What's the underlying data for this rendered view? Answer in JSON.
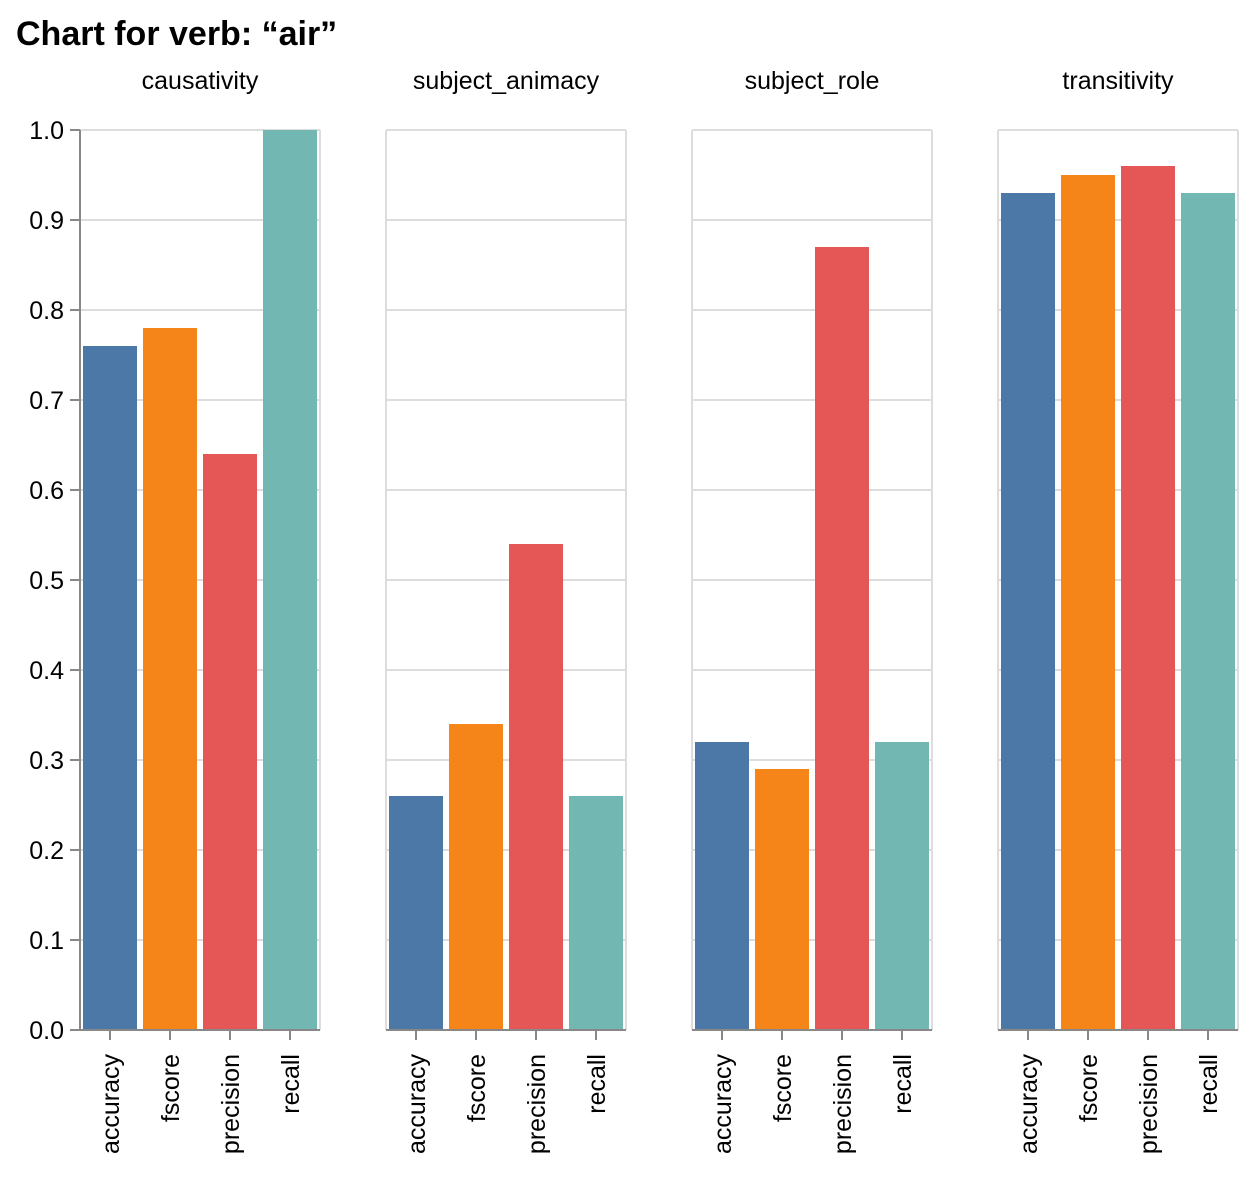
{
  "chart_data": {
    "type": "bar",
    "title": "Chart for verb: “air”",
    "facet_field": "",
    "categories": [
      "accuracy",
      "fscore",
      "precision",
      "recall"
    ],
    "colors": {
      "accuracy": "#4c78a8",
      "fscore": "#f58518",
      "precision": "#e45756",
      "recall": "#72b7b2"
    },
    "ylim": [
      0,
      1
    ],
    "yticks": [
      "0.0",
      "0.1",
      "0.2",
      "0.3",
      "0.4",
      "0.5",
      "0.6",
      "0.7",
      "0.8",
      "0.9",
      "1.0"
    ],
    "grid": true,
    "legend": "none",
    "facets": [
      {
        "name": "causativity",
        "values": [
          0.76,
          0.78,
          0.64,
          1.0
        ]
      },
      {
        "name": "subject_animacy",
        "values": [
          0.26,
          0.34,
          0.54,
          0.26
        ]
      },
      {
        "name": "subject_role",
        "values": [
          0.32,
          0.29,
          0.87,
          0.32
        ]
      },
      {
        "name": "transitivity",
        "values": [
          0.93,
          0.95,
          0.96,
          0.93
        ]
      }
    ]
  }
}
